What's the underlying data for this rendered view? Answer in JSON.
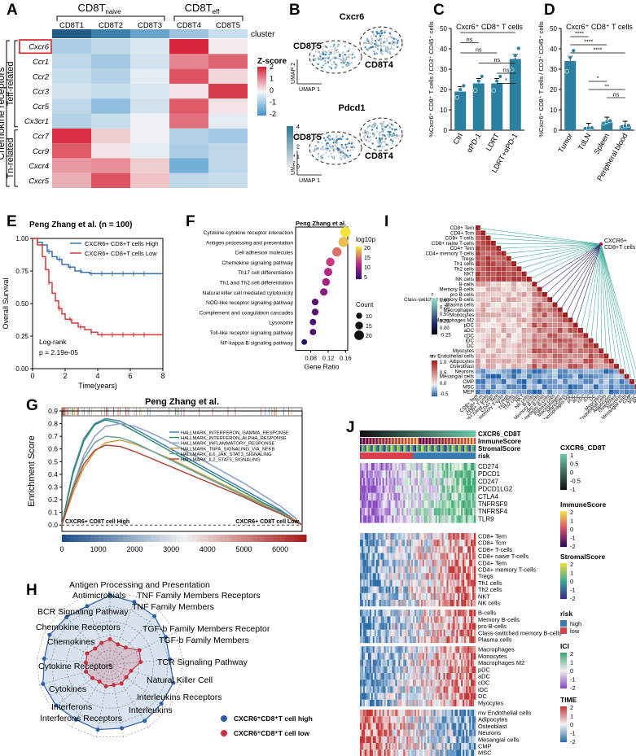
{
  "panels": {
    "A": {
      "letter": "A",
      "group_naive": "CD8T",
      "group_naive_sub": "naive",
      "group_eff": "CD8T",
      "group_eff_sub": "eff",
      "columns": [
        "CD8T1",
        "CD8T2",
        "CD8T3",
        "CD8T4",
        "CD8T5"
      ],
      "cluster_label": "cluster",
      "rows": [
        "Cxcr6",
        "Ccr1",
        "Ccr2",
        "Ccr3",
        "Ccr5",
        "Cx3cr1",
        "Ccr7",
        "Ccr9",
        "Cxcr4",
        "Cxcr5"
      ],
      "y_group_main": "Chemokine receptors",
      "y_group_teff": "Teff-related",
      "y_group_tn": "Tn-related",
      "legend_title": "Z-score",
      "legend_ticks": [
        "2",
        "1",
        "0",
        "-1",
        "-2"
      ],
      "z_values": [
        [
          -0.8,
          -0.6,
          -0.3,
          2.0,
          0.1
        ],
        [
          -0.6,
          -0.9,
          -0.4,
          1.1,
          1.4
        ],
        [
          -0.5,
          -0.7,
          -0.2,
          1.6,
          0.3
        ],
        [
          -0.4,
          -0.5,
          -0.3,
          0.2,
          1.8
        ],
        [
          -0.6,
          -1.1,
          -0.4,
          1.5,
          0.2
        ],
        [
          -0.7,
          -0.5,
          -0.1,
          1.3,
          -0.2
        ],
        [
          1.9,
          0.4,
          -0.1,
          -0.7,
          -0.9
        ],
        [
          1.5,
          0.2,
          -0.2,
          -0.8,
          -0.6
        ],
        [
          0.9,
          1.0,
          0.4,
          -1.4,
          -0.6
        ],
        [
          0.7,
          1.6,
          0.5,
          -0.6,
          -0.5
        ]
      ]
    },
    "B": {
      "letter": "B",
      "gene1": "Cxcr6",
      "gene2": "Pdcd1",
      "cluster_left": "CD8T5",
      "cluster_right": "CD8T4",
      "axis_x": "UMAP 1",
      "axis_y": "UMAP 2",
      "scale_ticks": [
        "4",
        "3",
        "2",
        "1",
        "0"
      ]
    },
    "C": {
      "letter": "C",
      "title": "Cxcr6⁺ CD8⁺ T cells",
      "ylabel": "%Cxcr6⁺ CD8⁺ T cells / CD3⁺ CD45⁺ cells",
      "sig_labels": [
        "*",
        "ns",
        "ns",
        "ns",
        "ns",
        "*"
      ]
    },
    "D": {
      "letter": "D",
      "title": "Cxcr6⁺ CD8⁺ T cells",
      "ylabel": "%Cxcr6⁺ CD8⁺ T cells / CD3⁺ CD45⁺ cells",
      "sig_labels": [
        "****",
        "****",
        "****",
        "*",
        "**",
        "ns"
      ]
    },
    "E": {
      "letter": "E",
      "title": "Peng Zhang et al. (n = 100)",
      "legend_high": "CXCR6+ CD8+T cells High",
      "legend_low": "CXCR6+ CD8+T cells Low",
      "logrank": "Log-rank",
      "pvalue": "p = 2.19e-05",
      "xlabel": "Time(years)",
      "ylabel": "Overall Survival"
    },
    "F": {
      "letter": "F",
      "title": "Peng Zhang et al.",
      "xlabel": "Gene Ratio",
      "legend_color_title": "log10p",
      "legend_color_ticks": [
        "20",
        "15",
        "10",
        "5"
      ],
      "legend_size_title": "Count",
      "legend_size_ticks": [
        "10",
        "15",
        "20"
      ]
    },
    "G": {
      "letter": "G",
      "title": "Peng Zhang et al.",
      "ylabel": "Enrichment Score",
      "label_high": "CXCR6+ CD8T cell High",
      "label_low": "CXCR6+ CD8T cell Low"
    },
    "H": {
      "letter": "H",
      "legend_high": "CXCR6⁺CD8⁺T cell high",
      "legend_low": "CXCR6⁺CD8⁺T cell low"
    },
    "I": {
      "letter": "I",
      "cells": [
        "CD8+ Tem",
        "CD8+ Tcm",
        "CD8+ T-cells",
        "CD8+ naive T-cells",
        "CD4+ Tem",
        "CD4+ memory T-cells",
        "Tregs",
        "Th1 cells",
        "Th2 cells",
        "NKT",
        "NK cells",
        "B-cells",
        "Memory B-cells",
        "pro B-cells",
        "Class-switched memory B-cells",
        "Plasma cells",
        "Macrophages",
        "Monocytes",
        "Macrophages M2",
        "pDC",
        "aDC",
        "cDC",
        "iDC",
        "DC",
        "Myocytes",
        "mv Endothelial cells",
        "Adipocytes",
        "Osteoblast",
        "Neurons",
        "Mesangial cells",
        "CMP",
        "MSC",
        "MEP"
      ],
      "target": "CXCR6+ CD8+T cells",
      "legend1_title": "r",
      "legend1_ticks": [
        "1.00",
        "0.75",
        "0.50",
        "0.25",
        "0.00",
        "-0.25"
      ],
      "legend2_title": "r",
      "legend2_ticks": [
        "1.0",
        "0.5",
        "0.0",
        "-0.5"
      ]
    },
    "J": {
      "letter": "J",
      "annotations": [
        "CXCR6_CD8T",
        "ImmuneScore",
        "StromalScore",
        "risk"
      ],
      "genes": [
        "CD274",
        "PDCD1",
        "CD247",
        "PDCD1LG2",
        "CTLA4",
        "TNFRSF9",
        "TNFRSF4",
        "TLR9"
      ],
      "cells": [
        "CD8+ Tem",
        "CD8+ Tcm",
        "CD8+ T-cells",
        "CD8+ naive T-cells",
        "CD4+ Tem",
        "CD4+ memory T-cells",
        "Tregs",
        "Th1 cells",
        "Th2 cells",
        "NKT",
        "NK cells",
        "B-cells",
        "Memory B-cells",
        "pro B-cells",
        "Class-switched memory B-cells",
        "Plasma cells",
        "Macrophages",
        "Monocytes",
        "Macrophages M2",
        "pDC",
        "aDC",
        "cDC",
        "iDC",
        "DC",
        "Myocytes",
        "mv Endothelial cells",
        "Adipocytes",
        "Osteoblast",
        "Neurons",
        "Mesangial cells",
        "CMP",
        "MSC",
        "MEP"
      ],
      "legends": [
        {
          "title": "CXCR6_CD8T",
          "ticks": [
            "1",
            "0.5",
            "0",
            "-0.5",
            "-1"
          ]
        },
        {
          "title": "ImmuneScore",
          "ticks": [
            "2",
            "1",
            "0",
            "-1",
            "-2"
          ]
        },
        {
          "title": "StromalScore",
          "ticks": [
            "2",
            "1",
            "0",
            "-1",
            "-2"
          ]
        },
        {
          "title": "risk",
          "ticks": [
            "high",
            "low"
          ]
        },
        {
          "title": "ICI",
          "ticks": [
            "2",
            "1",
            "0",
            "-1",
            "-2"
          ]
        },
        {
          "title": "TIME",
          "ticks": [
            "2",
            "1",
            "0",
            "-1",
            "-2"
          ]
        }
      ]
    }
  },
  "chart_data": [
    {
      "id": "C",
      "type": "bar",
      "title": "Cxcr6⁺ CD8⁺ T cells",
      "categories": [
        "Ctrl",
        "αPD-1",
        "LDRT",
        "LDRT+αPD-1"
      ],
      "values": [
        19,
        23,
        23,
        35
      ],
      "ylabel": "%Cxcr6⁺ CD8⁺ T cells / CD3⁺ CD45⁺ cells",
      "ylim": [
        0,
        50
      ],
      "yticks": [
        0,
        10,
        20,
        30,
        40,
        50
      ]
    },
    {
      "id": "D",
      "type": "bar",
      "title": "Cxcr6⁺ CD8⁺ T cells",
      "categories": [
        "Tumor",
        "TdLN",
        "Spleen",
        "Peripheral blood"
      ],
      "values": [
        34,
        1,
        4,
        2
      ],
      "ylabel": "%Cxcr6⁺ CD8⁺ T cells / CD3⁺ CD45⁺ cells",
      "ylim": [
        0,
        50
      ],
      "yticks": [
        0,
        10,
        20,
        30,
        40,
        50
      ]
    },
    {
      "id": "E",
      "type": "line",
      "title": "Peng Zhang et al. (n = 100)",
      "xlabel": "Time(years)",
      "ylabel": "Overall Survival",
      "xlim": [
        0,
        8
      ],
      "ylim": [
        0,
        1
      ],
      "xticks": [
        0,
        2,
        4,
        6,
        8
      ],
      "yticks": [
        0,
        0.25,
        0.5,
        0.75,
        1.0
      ],
      "series": [
        {
          "name": "CXCR6+ CD8+T cells High",
          "x": [
            0,
            0.3,
            0.6,
            0.9,
            1.2,
            1.5,
            1.8,
            2.2,
            2.6,
            3.0,
            3.5,
            4.0,
            8.0
          ],
          "y": [
            1.0,
            0.97,
            0.95,
            0.9,
            0.86,
            0.84,
            0.8,
            0.78,
            0.75,
            0.74,
            0.73,
            0.73,
            0.73
          ]
        },
        {
          "name": "CXCR6+ CD8+T cells Low",
          "x": [
            0,
            0.3,
            0.6,
            0.8,
            1.0,
            1.2,
            1.4,
            1.6,
            1.8,
            2.0,
            2.4,
            2.8,
            3.2,
            3.6,
            4.0,
            8.0
          ],
          "y": [
            1.0,
            0.95,
            0.86,
            0.76,
            0.66,
            0.58,
            0.52,
            0.46,
            0.42,
            0.38,
            0.35,
            0.32,
            0.3,
            0.28,
            0.26,
            0.26
          ]
        }
      ]
    },
    {
      "id": "F",
      "type": "scatter",
      "title": "Peng Zhang et al.",
      "xlabel": "Gene Ratio",
      "xlim": [
        0.045,
        0.165
      ],
      "xticks": [
        0.08,
        0.12,
        0.16
      ],
      "categories": [
        "Cytokine-cytokine receptor interaction",
        "Antigen processing and presentation",
        "Cell adhesion molecules",
        "Chemokine signaling pathway",
        "Th17 cell differentiation",
        "Th1 and Th2 cell differentiation",
        "Natural killer cell mediated cytotoxicity",
        "NOD-like receptor signaling pathway",
        "Complement and coagulation cascades",
        "Lysosome",
        "Toll-like receptor signaling pathway",
        "NF-kappa B signaling pathway"
      ],
      "gene_ratio": [
        0.16,
        0.155,
        0.14,
        0.125,
        0.12,
        0.115,
        0.11,
        0.09,
        0.09,
        0.085,
        0.085,
        0.065
      ],
      "log10p": [
        23,
        21,
        17,
        14,
        12,
        11,
        9,
        6,
        6,
        5,
        5,
        3
      ],
      "count": [
        22,
        21,
        19,
        17,
        16,
        15,
        14,
        12,
        12,
        11,
        11,
        9
      ]
    },
    {
      "id": "G",
      "type": "line",
      "title": "Peng Zhang et al.",
      "ylabel": "Enrichment Score",
      "xlim": [
        0,
        6600
      ],
      "ylim": [
        -0.05,
        0.9
      ],
      "xticks": [
        0,
        1000,
        2000,
        3000,
        4000,
        5000,
        6000
      ],
      "yticks": [
        0.0,
        0.1,
        0.2,
        0.3,
        0.4,
        0.5,
        0.6,
        0.7,
        0.8,
        0.9
      ],
      "x": [
        0,
        300,
        600,
        900,
        1200,
        1600,
        2000,
        2500,
        3000,
        3500,
        4000,
        4500,
        5000,
        5500,
        6000,
        6400,
        6600
      ],
      "series": [
        {
          "name": "HALLMARK_INTERFERON_GAMMA_RESPONSE",
          "color": "#4a7fb5",
          "values": [
            0,
            0.42,
            0.68,
            0.8,
            0.84,
            0.82,
            0.76,
            0.68,
            0.6,
            0.52,
            0.44,
            0.36,
            0.28,
            0.2,
            0.12,
            0.04,
            0
          ]
        },
        {
          "name": "HALLMARK_INTERFERON_ALPHA_RESPONSE",
          "color": "#2f8f6f",
          "values": [
            0,
            0.4,
            0.66,
            0.79,
            0.83,
            0.8,
            0.74,
            0.66,
            0.58,
            0.5,
            0.42,
            0.34,
            0.26,
            0.18,
            0.11,
            0.04,
            0
          ]
        },
        {
          "name": "HALLMARK_INFLAMMATORY_RESPONSE",
          "color": "#8aa0c8",
          "values": [
            0,
            0.3,
            0.55,
            0.7,
            0.78,
            0.8,
            0.78,
            0.72,
            0.65,
            0.57,
            0.49,
            0.41,
            0.33,
            0.24,
            0.15,
            0.06,
            0
          ]
        },
        {
          "name": "HALLMARK_TNFA_SIGNALING_VIA_NFKB",
          "color": "#c8a040",
          "values": [
            0,
            0.25,
            0.45,
            0.58,
            0.65,
            0.67,
            0.64,
            0.58,
            0.52,
            0.45,
            0.38,
            0.31,
            0.24,
            0.17,
            0.1,
            0.04,
            0
          ]
        },
        {
          "name": "HALLMARK_IL6_JAK_STAT3_SIGNALING",
          "color": "#6aa0a0",
          "values": [
            0,
            0.3,
            0.52,
            0.65,
            0.7,
            0.69,
            0.65,
            0.58,
            0.51,
            0.44,
            0.37,
            0.3,
            0.23,
            0.16,
            0.1,
            0.03,
            0
          ]
        },
        {
          "name": "HALLMARK_IL2_STAT5_SIGNALING",
          "color": "#b04a3a",
          "values": [
            0,
            0.28,
            0.48,
            0.59,
            0.63,
            0.62,
            0.58,
            0.52,
            0.46,
            0.4,
            0.34,
            0.28,
            0.22,
            0.15,
            0.09,
            0.03,
            0
          ]
        }
      ]
    },
    {
      "id": "H",
      "type": "radar",
      "categories": [
        "Antigen Processing and Presentation",
        "TNF Family Members Receptors",
        "TNF Family Members",
        "TGF-b Family Members Receptor",
        "TGF-b Family Members",
        "TCR Signaling Pathway",
        "Natural Killer Cell",
        "Interleukins Receptors",
        "Interleukins",
        "Interferons Receptors",
        "Interferons",
        "Cytokines",
        "Cytokine Receptors",
        "Chemokines",
        "Chemokine Receptors",
        "BCR Signaling Pathway",
        "Antimicrobials"
      ],
      "series": [
        {
          "name": "CXCR6⁺CD8⁺T cell high",
          "color": "#2b5fa8",
          "values": [
            0.95,
            0.92,
            0.9,
            0.85,
            0.82,
            0.9,
            0.88,
            0.9,
            0.88,
            0.9,
            0.88,
            0.92,
            0.95,
            0.9,
            0.92,
            0.88,
            0.86
          ]
        },
        {
          "name": "CXCR6⁺CD8⁺T cell low",
          "color": "#c8323c",
          "values": [
            0.35,
            0.3,
            0.32,
            0.45,
            0.42,
            0.3,
            0.28,
            0.3,
            0.28,
            0.3,
            0.27,
            0.3,
            0.34,
            0.33,
            0.35,
            0.3,
            0.32
          ]
        }
      ],
      "rlim": [
        0,
        1
      ]
    }
  ]
}
